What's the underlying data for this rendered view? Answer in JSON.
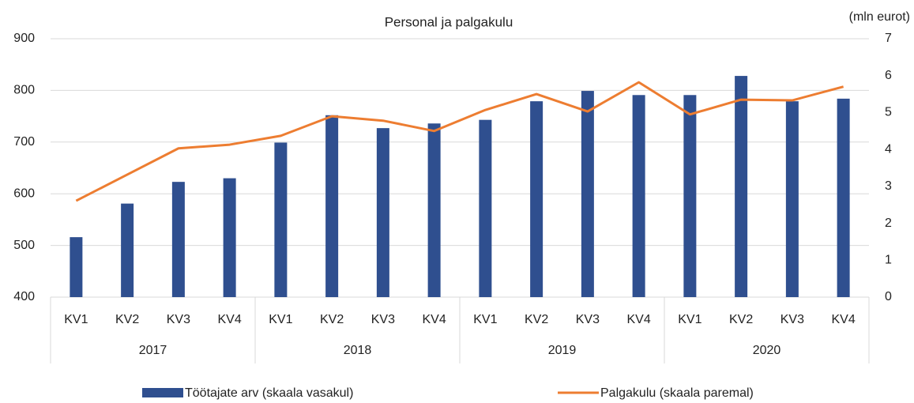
{
  "chart_data": {
    "type": "bar-line",
    "title": "Personal ja palgakulu",
    "y2_label": "(mln eurot)",
    "categories": [
      "KV1",
      "KV2",
      "KV3",
      "KV4",
      "KV1",
      "KV2",
      "KV3",
      "KV4",
      "KV1",
      "KV2",
      "KV3",
      "KV4",
      "KV1",
      "KV2",
      "KV3",
      "KV4"
    ],
    "groups": [
      "2017",
      "2018",
      "2019",
      "2020"
    ],
    "series": [
      {
        "name": "Töötajate arv (skaala vasakul)",
        "type": "bar",
        "color": "#2f4f8f",
        "axis": "y",
        "values": [
          516,
          581,
          623,
          630,
          699,
          752,
          727,
          736,
          743,
          779,
          799,
          791,
          791,
          828,
          779,
          784
        ]
      },
      {
        "name": "Palgakulu (skaala paremal)",
        "type": "line",
        "color": "#ed7d31",
        "axis": "y2",
        "values": [
          2.61,
          3.32,
          4.03,
          4.13,
          4.37,
          4.9,
          4.78,
          4.5,
          5.07,
          5.5,
          5.03,
          5.82,
          4.95,
          5.35,
          5.33,
          5.7
        ]
      }
    ],
    "ylim": [
      400,
      900
    ],
    "yticks": [
      400,
      500,
      600,
      700,
      800,
      900
    ],
    "y2lim": [
      0,
      7
    ],
    "y2ticks": [
      0,
      1,
      2,
      3,
      4,
      5,
      6,
      7
    ],
    "grid": true,
    "legend": "bottom"
  }
}
